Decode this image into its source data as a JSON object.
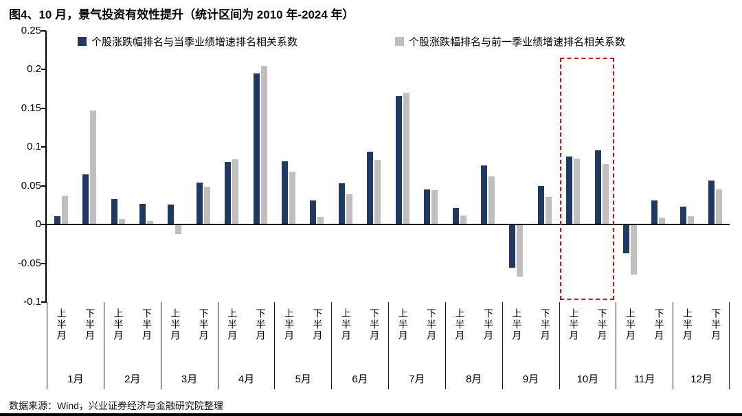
{
  "title": "图4、10 月，景气投资有效性提升（统计区间为 2010 年-2024 年）",
  "footer": {
    "source": "数据来源：Wind，兴业证券经济与金融研究院整理"
  },
  "legend": [
    {
      "label": "个股涨跌幅排名与当季业绩增速排名相关系数",
      "color": "#1f3864"
    },
    {
      "label": "个股涨跌幅排名与前一季业绩增速排名相关系数",
      "color": "#bfbfbf"
    }
  ],
  "colors": {
    "series_current": "#1f3864",
    "series_previous": "#bfbfbf",
    "highlight_box": "#fe0000",
    "axis": "#000000"
  },
  "chart_data": {
    "type": "bar",
    "title": "图4、10 月，景气投资有效性提升（统计区间为 2010 年-2024 年）",
    "categories_months": [
      "1月",
      "2月",
      "3月",
      "4月",
      "5月",
      "6月",
      "7月",
      "8月",
      "9月",
      "10月",
      "11月",
      "12月"
    ],
    "subcategories_per_month": [
      "上半月",
      "下半月"
    ],
    "ylim": [
      -0.1,
      0.25
    ],
    "grid": false,
    "legend_position": "top",
    "y_ticks": [
      {
        "v": 0.25,
        "label": "0.25"
      },
      {
        "v": 0.2,
        "label": "0.2"
      },
      {
        "v": 0.15,
        "label": "0.15"
      },
      {
        "v": 0.1,
        "label": "0.1"
      },
      {
        "v": 0.05,
        "label": "0.05"
      },
      {
        "v": 0,
        "label": "0"
      },
      {
        "v": -0.05,
        "label": "-0.05"
      },
      {
        "v": -0.1,
        "label": "-0.1"
      }
    ],
    "series": [
      {
        "name": "个股涨跌幅排名与当季业绩增速排名相关系数",
        "color": "#1f3864",
        "values": [
          0.011,
          0.065,
          0.033,
          0.027,
          0.026,
          0.054,
          0.081,
          0.195,
          0.082,
          0.031,
          0.053,
          0.094,
          0.166,
          0.045,
          0.021,
          0.076,
          -0.056,
          0.05,
          0.088,
          0.096,
          -0.037,
          0.031,
          0.023,
          0.057
        ]
      },
      {
        "name": "个股涨跌幅排名与前一季业绩增速排名相关系数",
        "color": "#bfbfbf",
        "values": [
          0.037,
          0.147,
          0.007,
          0.005,
          -0.012,
          0.049,
          0.084,
          0.205,
          0.068,
          0.01,
          0.039,
          0.083,
          0.17,
          0.044,
          0.012,
          0.062,
          -0.067,
          0.036,
          0.085,
          0.078,
          -0.065,
          0.009,
          0.011,
          0.045
        ]
      }
    ],
    "highlight": {
      "month": "10月",
      "style": "red dashed box",
      "color": "#fe0000"
    }
  }
}
